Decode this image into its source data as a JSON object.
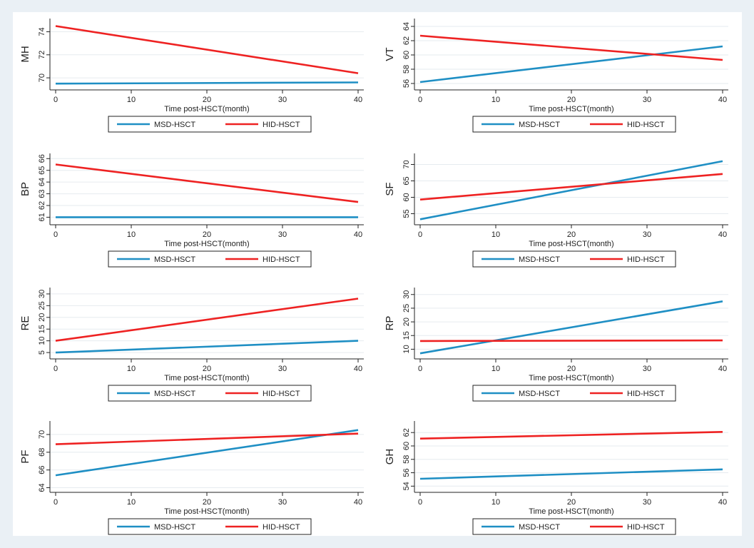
{
  "colors": {
    "msd": "#1f8fc4",
    "hid": "#ee2222",
    "grid": "#e6ebef",
    "axis": "#222222"
  },
  "chart_data": [
    {
      "type": "line",
      "ylabel": "MH",
      "xlabel": "Time post-HSCT(month)",
      "xlim": [
        0,
        40
      ],
      "ylim": [
        69.2,
        74.9
      ],
      "xticks": [
        0,
        10,
        20,
        30,
        40
      ],
      "yticks": [
        70,
        72,
        74
      ],
      "series": [
        {
          "name": "MSD-HSCT",
          "color": "msd",
          "x": [
            0,
            40
          ],
          "y": [
            69.5,
            69.6
          ]
        },
        {
          "name": "HID-HSCT",
          "color": "hid",
          "x": [
            0,
            40
          ],
          "y": [
            74.5,
            70.4
          ]
        }
      ],
      "legend": [
        "MSD-HSCT",
        "HID-HSCT"
      ],
      "grid": true
    },
    {
      "type": "line",
      "ylabel": "VT",
      "xlabel": "Time post-HSCT(month)",
      "xlim": [
        0,
        40
      ],
      "ylim": [
        55.5,
        64.7
      ],
      "xticks": [
        0,
        10,
        20,
        30,
        40
      ],
      "yticks": [
        56,
        58,
        60,
        62,
        64
      ],
      "series": [
        {
          "name": "MSD-HSCT",
          "color": "msd",
          "x": [
            0,
            40
          ],
          "y": [
            56.2,
            61.2
          ]
        },
        {
          "name": "HID-HSCT",
          "color": "hid",
          "x": [
            0,
            40
          ],
          "y": [
            62.7,
            59.3
          ]
        }
      ],
      "legend": [
        "MSD-HSCT",
        "HID-HSCT"
      ],
      "grid": true
    },
    {
      "type": "line",
      "ylabel": "BP",
      "xlabel": "Time post-HSCT(month)",
      "xlim": [
        0,
        40
      ],
      "ylim": [
        60.6,
        66.2
      ],
      "xticks": [
        0,
        10,
        20,
        30,
        40
      ],
      "yticks": [
        61,
        62,
        63,
        64,
        65,
        66
      ],
      "series": [
        {
          "name": "MSD-HSCT",
          "color": "msd",
          "x": [
            0,
            40
          ],
          "y": [
            61.0,
            61.0
          ]
        },
        {
          "name": "HID-HSCT",
          "color": "hid",
          "x": [
            0,
            40
          ],
          "y": [
            65.5,
            62.3
          ]
        }
      ],
      "legend": [
        "MSD-HSCT",
        "HID-HSCT"
      ],
      "grid": true
    },
    {
      "type": "line",
      "ylabel": "SF",
      "xlabel": "Time post-HSCT(month)",
      "xlim": [
        0,
        40
      ],
      "ylim": [
        52.5,
        72.5
      ],
      "xticks": [
        0,
        10,
        20,
        30,
        40
      ],
      "yticks": [
        55,
        60,
        65,
        70
      ],
      "series": [
        {
          "name": "MSD-HSCT",
          "color": "msd",
          "x": [
            0,
            40
          ],
          "y": [
            53.3,
            71.0
          ]
        },
        {
          "name": "HID-HSCT",
          "color": "hid",
          "x": [
            0,
            40
          ],
          "y": [
            59.3,
            67.1
          ]
        }
      ],
      "legend": [
        "MSD-HSCT",
        "HID-HSCT"
      ],
      "grid": true
    },
    {
      "type": "line",
      "ylabel": "RE",
      "xlabel": "Time post-HSCT(month)",
      "xlim": [
        0,
        40
      ],
      "ylim": [
        3.5,
        31.5
      ],
      "xticks": [
        0,
        10,
        20,
        30,
        40
      ],
      "yticks": [
        5,
        10,
        15,
        20,
        25,
        30
      ],
      "series": [
        {
          "name": "MSD-HSCT",
          "color": "msd",
          "x": [
            0,
            40
          ],
          "y": [
            5.0,
            10.0
          ]
        },
        {
          "name": "HID-HSCT",
          "color": "hid",
          "x": [
            0,
            40
          ],
          "y": [
            10.0,
            28.0
          ]
        }
      ],
      "legend": [
        "MSD-HSCT",
        "HID-HSCT"
      ],
      "grid": true
    },
    {
      "type": "line",
      "ylabel": "RP",
      "xlabel": "Time post-HSCT(month)",
      "xlim": [
        0,
        40
      ],
      "ylim": [
        7.5,
        31.5
      ],
      "xticks": [
        0,
        10,
        20,
        30,
        40
      ],
      "yticks": [
        10,
        15,
        20,
        25,
        30
      ],
      "series": [
        {
          "name": "MSD-HSCT",
          "color": "msd",
          "x": [
            0,
            40
          ],
          "y": [
            8.5,
            27.5
          ]
        },
        {
          "name": "HID-HSCT",
          "color": "hid",
          "x": [
            0,
            40
          ],
          "y": [
            13.0,
            13.2
          ]
        }
      ],
      "legend": [
        "MSD-HSCT",
        "HID-HSCT"
      ],
      "grid": true
    },
    {
      "type": "line",
      "ylabel": "PF",
      "xlabel": "Time post-HSCT(month)",
      "xlim": [
        0,
        40
      ],
      "ylim": [
        63.8,
        71.2
      ],
      "xticks": [
        0,
        10,
        20,
        30,
        40
      ],
      "yticks": [
        64,
        66,
        68,
        70
      ],
      "series": [
        {
          "name": "MSD-HSCT",
          "color": "msd",
          "x": [
            0,
            40
          ],
          "y": [
            65.4,
            70.5
          ]
        },
        {
          "name": "HID-HSCT",
          "color": "hid",
          "x": [
            0,
            40
          ],
          "y": [
            68.9,
            70.1
          ]
        }
      ],
      "legend": [
        "MSD-HSCT",
        "HID-HSCT"
      ],
      "grid": true
    },
    {
      "type": "line",
      "ylabel": "GH",
      "xlabel": "Time post-HSCT(month)",
      "xlim": [
        0,
        40
      ],
      "ylim": [
        53.5,
        63.3
      ],
      "xticks": [
        0,
        10,
        20,
        30,
        40
      ],
      "yticks": [
        54,
        56,
        58,
        60,
        62
      ],
      "series": [
        {
          "name": "MSD-HSCT",
          "color": "msd",
          "x": [
            0,
            40
          ],
          "y": [
            55.1,
            56.5
          ]
        },
        {
          "name": "HID-HSCT",
          "color": "hid",
          "x": [
            0,
            40
          ],
          "y": [
            61.1,
            62.1
          ]
        }
      ],
      "legend": [
        "MSD-HSCT",
        "HID-HSCT"
      ],
      "grid": true
    }
  ]
}
